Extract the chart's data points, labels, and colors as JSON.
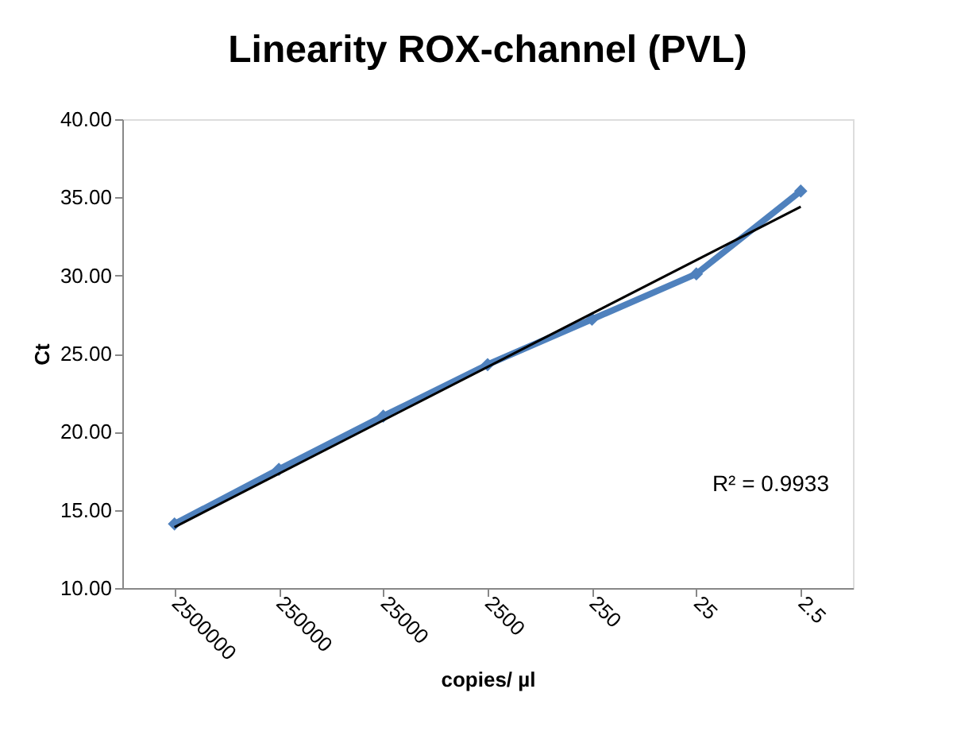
{
  "chart_data": {
    "type": "line",
    "title": "Linearity ROX-channel (PVL)",
    "xlabel": "copies/ µl",
    "ylabel": "Ct",
    "categories": [
      "2500000",
      "250000",
      "25000",
      "2500",
      "250",
      "25",
      "2.5"
    ],
    "series": [
      {
        "color": "#4f81bd",
        "values": [
          14.1,
          17.6,
          21.0,
          24.3,
          27.2,
          30.1,
          35.4
        ],
        "marker": "diamond"
      },
      {
        "type": "line",
        "color": "#000000",
        "x": [
          "2500000",
          "2.5"
        ],
        "values": [
          13.9,
          34.4
        ],
        "marker": "none"
      }
    ],
    "ylim": [
      10,
      40
    ],
    "yticks": [
      {
        "value": 10,
        "label": "10.00"
      },
      {
        "value": 15,
        "label": "15.00"
      },
      {
        "value": 20,
        "label": "20.00"
      },
      {
        "value": 25,
        "label": "25.00"
      },
      {
        "value": 30,
        "label": "30.00"
      },
      {
        "value": 35,
        "label": "35.00"
      },
      {
        "value": 40,
        "label": "40.00"
      }
    ],
    "annotations": [
      "R² = 0.9933"
    ],
    "grid": false
  }
}
